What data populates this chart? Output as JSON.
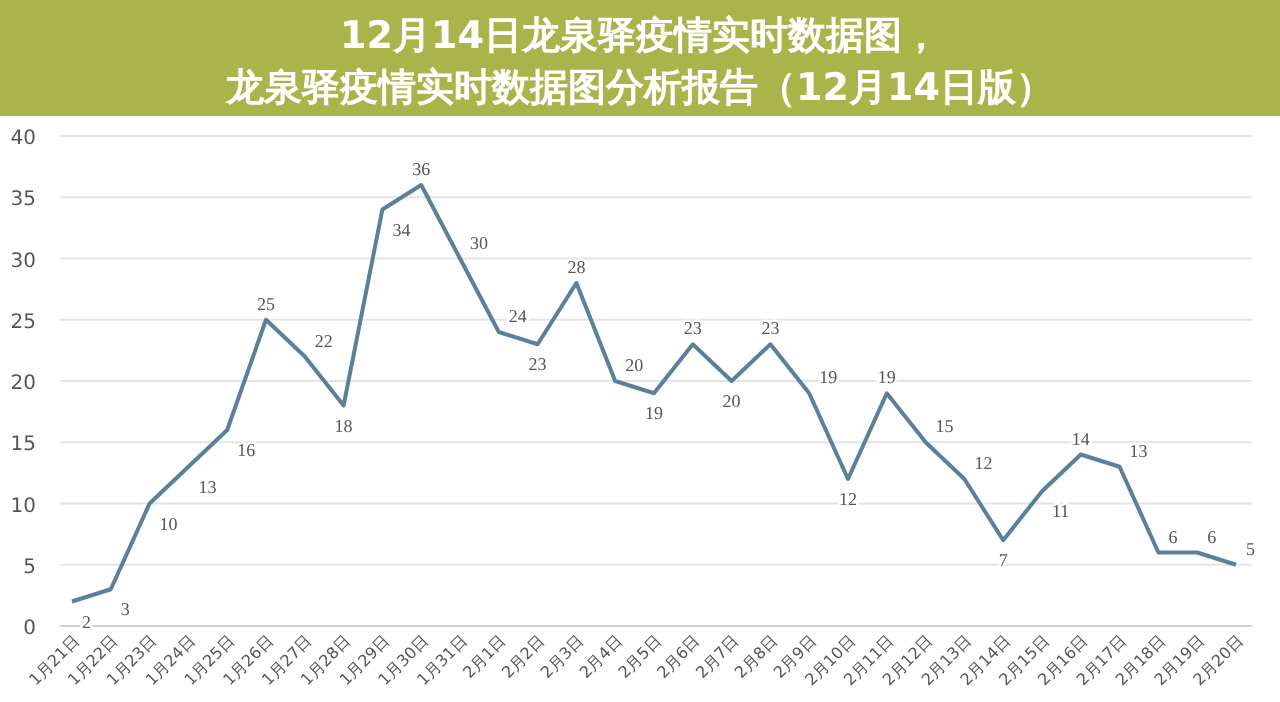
{
  "chart_data": {
    "type": "line",
    "title": "12月14日龙泉驿疫情实时数据图，龙泉驿疫情实时数据图分析报告（12月14日版）",
    "categories": [
      "1月21日",
      "1月22日",
      "1月23日",
      "1月24日",
      "1月25日",
      "1月26日",
      "1月27日",
      "1月28日",
      "1月29日",
      "1月30日",
      "1月31日",
      "2月1日",
      "2月2日",
      "2月3日",
      "2月4日",
      "2月5日",
      "2月6日",
      "2月7日",
      "2月8日",
      "2月9日",
      "2月10日",
      "2月11日",
      "2月12日",
      "2月13日",
      "2月14日",
      "2月15日",
      "2月16日",
      "2月17日",
      "2月18日",
      "2月19日",
      "2月20日"
    ],
    "series": [
      {
        "color": "#5b8099",
        "values": [
          2,
          3,
          10,
          13,
          16,
          25,
          22,
          18,
          34,
          36,
          30,
          24,
          23,
          28,
          20,
          19,
          23,
          20,
          23,
          19,
          12,
          19,
          15,
          12,
          7,
          11,
          14,
          13,
          6,
          6,
          5
        ]
      }
    ],
    "ylim": [
      0,
      40
    ],
    "yticks": [
      0,
      5,
      10,
      15,
      20,
      25,
      30,
      35,
      40
    ],
    "grid": "y",
    "data_labels": true,
    "marker": "none",
    "line_style": "solid"
  }
}
